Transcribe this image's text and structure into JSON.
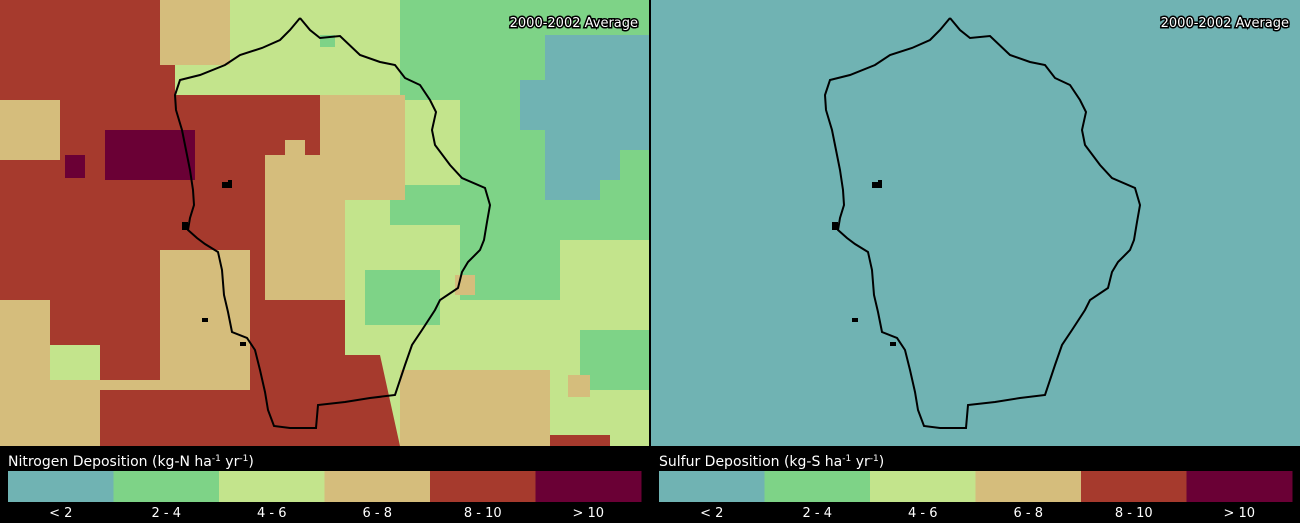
{
  "panels": [
    {
      "label": "2000-2002 Average",
      "legend": {
        "title_parts": [
          "Nitrogen Deposition (kg-N ha",
          "-1",
          " yr",
          "-1",
          ")"
        ],
        "categories": [
          "< 2",
          "2 - 4",
          "4 - 6",
          "6 - 8",
          "8 - 10",
          "> 10"
        ],
        "colors": [
          "#70b3b3",
          "#7ed387",
          "#c3e48c",
          "#d5bd7c",
          "#a63a2d",
          "#6a0035"
        ]
      }
    },
    {
      "label": "2000-2002 Average",
      "legend": {
        "title_parts": [
          "Sulfur Deposition (kg-S ha",
          "-1",
          " yr",
          "-1",
          ")"
        ],
        "categories": [
          "< 2",
          "2 - 4",
          "4 - 6",
          "6 - 8",
          "8 - 10",
          "> 10"
        ],
        "colors": [
          "#70b3b3",
          "#7ed387",
          "#c3e48c",
          "#d5bd7c",
          "#a63a2d",
          "#6a0035"
        ]
      }
    }
  ]
}
